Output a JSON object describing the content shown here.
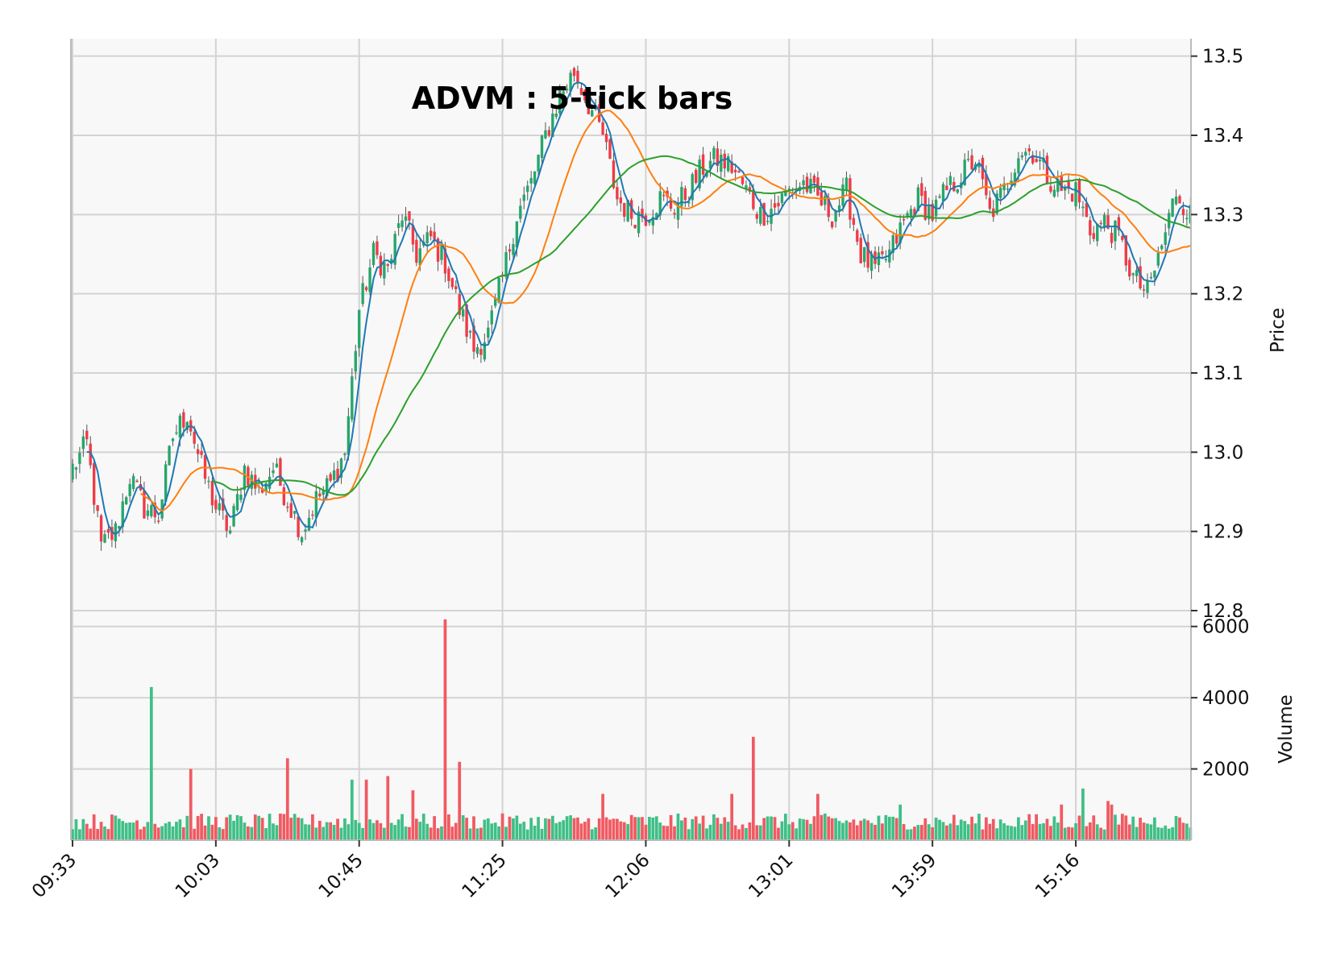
{
  "chart_data": {
    "type": "candlestick",
    "title": "ADVM : 5-tick bars",
    "price_label": "Price",
    "volume_label": "Volume",
    "price_ylim": [
      12.8,
      13.52
    ],
    "price_ticks": [
      "12.8",
      "12.9",
      "13.0",
      "13.1",
      "13.2",
      "13.3",
      "13.4",
      "13.5"
    ],
    "volume_ylim": [
      0,
      6400
    ],
    "volume_ticks": [
      "2000",
      "4000",
      "6000"
    ],
    "x_tick_labels": [
      "09:33",
      "10:03",
      "10:45",
      "11:25",
      "12:06",
      "13:01",
      "13:59",
      "15:16"
    ],
    "x_tick_indices": [
      0,
      40,
      80,
      120,
      160,
      200,
      240,
      280
    ],
    "bar_count": 313,
    "colors": {
      "up": "#26a66b",
      "down": "#ef3b46",
      "vol_up": "#3fbf86",
      "vol_down": "#f05a61",
      "ma_short": "#1f77b4",
      "ma_mid": "#ff7f0e",
      "ma_long": "#2ca02c",
      "panel_bg": "#f8f8f8",
      "grid": "#d3d3d3"
    },
    "moving_averages": [
      {
        "color_key": "ma_short",
        "period": 5
      },
      {
        "color_key": "ma_mid",
        "period": 20
      },
      {
        "color_key": "ma_long",
        "period": 40
      }
    ],
    "close_anchors": [
      [
        0,
        12.98
      ],
      [
        4,
        13.01
      ],
      [
        8,
        12.88
      ],
      [
        12,
        12.9
      ],
      [
        16,
        12.97
      ],
      [
        20,
        12.93
      ],
      [
        24,
        12.92
      ],
      [
        28,
        13.02
      ],
      [
        32,
        13.05
      ],
      [
        36,
        12.98
      ],
      [
        40,
        12.93
      ],
      [
        44,
        12.9
      ],
      [
        48,
        12.98
      ],
      [
        52,
        12.95
      ],
      [
        56,
        12.98
      ],
      [
        60,
        12.94
      ],
      [
        64,
        12.9
      ],
      [
        68,
        12.94
      ],
      [
        72,
        12.96
      ],
      [
        76,
        13.0
      ],
      [
        80,
        13.18
      ],
      [
        84,
        13.25
      ],
      [
        88,
        13.23
      ],
      [
        92,
        13.3
      ],
      [
        96,
        13.25
      ],
      [
        100,
        13.27
      ],
      [
        104,
        13.24
      ],
      [
        108,
        13.18
      ],
      [
        112,
        13.13
      ],
      [
        116,
        13.15
      ],
      [
        120,
        13.22
      ],
      [
        124,
        13.3
      ],
      [
        128,
        13.34
      ],
      [
        132,
        13.4
      ],
      [
        136,
        13.45
      ],
      [
        140,
        13.48
      ],
      [
        144,
        13.44
      ],
      [
        148,
        13.4
      ],
      [
        152,
        13.32
      ],
      [
        156,
        13.3
      ],
      [
        160,
        13.3
      ],
      [
        164,
        13.32
      ],
      [
        168,
        13.31
      ],
      [
        172,
        13.33
      ],
      [
        176,
        13.36
      ],
      [
        180,
        13.37
      ],
      [
        184,
        13.36
      ],
      [
        188,
        13.33
      ],
      [
        192,
        13.3
      ],
      [
        196,
        13.31
      ],
      [
        200,
        13.33
      ],
      [
        204,
        13.34
      ],
      [
        208,
        13.32
      ],
      [
        212,
        13.3
      ],
      [
        216,
        13.33
      ],
      [
        220,
        13.25
      ],
      [
        224,
        13.23
      ],
      [
        228,
        13.25
      ],
      [
        232,
        13.29
      ],
      [
        236,
        13.32
      ],
      [
        240,
        13.3
      ],
      [
        244,
        13.33
      ],
      [
        248,
        13.35
      ],
      [
        252,
        13.37
      ],
      [
        256,
        13.3
      ],
      [
        260,
        13.33
      ],
      [
        264,
        13.38
      ],
      [
        268,
        13.38
      ],
      [
        272,
        13.35
      ],
      [
        276,
        13.33
      ],
      [
        280,
        13.33
      ],
      [
        284,
        13.28
      ],
      [
        288,
        13.29
      ],
      [
        292,
        13.27
      ],
      [
        296,
        13.22
      ],
      [
        300,
        13.2
      ],
      [
        304,
        13.26
      ],
      [
        308,
        13.33
      ],
      [
        312,
        13.3
      ]
    ],
    "volume_spikes": [
      [
        22,
        4300
      ],
      [
        33,
        2000
      ],
      [
        60,
        2300
      ],
      [
        78,
        1700
      ],
      [
        82,
        1700
      ],
      [
        88,
        1800
      ],
      [
        95,
        1400
      ],
      [
        104,
        6200
      ],
      [
        108,
        2200
      ],
      [
        148,
        1300
      ],
      [
        184,
        1300
      ],
      [
        190,
        2900
      ],
      [
        208,
        1300
      ],
      [
        231,
        1000
      ],
      [
        276,
        1000
      ],
      [
        282,
        1450
      ],
      [
        289,
        1100
      ],
      [
        290,
        1000
      ]
    ]
  }
}
